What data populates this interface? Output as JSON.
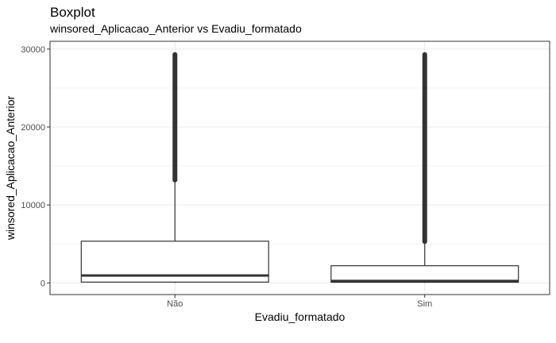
{
  "chart_data": {
    "type": "boxplot",
    "title": "Boxplot",
    "subtitle": "winsored_Aplicacao_Anterior vs Evadiu_formatado",
    "xlabel": "Evadiu_formatado",
    "ylabel": "winsored_Aplicacao_Anterior",
    "ylim": [
      -1500,
      31000
    ],
    "yticks": [
      0,
      10000,
      20000,
      30000
    ],
    "ytick_labels": [
      "0",
      "10000",
      "20000",
      "30000"
    ],
    "grid": true,
    "categories": [
      "Não",
      "Sim"
    ],
    "boxes": [
      {
        "category": "Não",
        "min": 0,
        "q1": 100,
        "median": 950,
        "q3": 5350,
        "whisker_high": 13200,
        "outliers_range": [
          13200,
          29300
        ]
      },
      {
        "category": "Sim",
        "min": 0,
        "q1": 80,
        "median": 250,
        "q3": 2200,
        "whisker_high": 5300,
        "outliers_range": [
          5300,
          29300
        ]
      }
    ],
    "colors": {
      "box_fill": "#ffffff",
      "box_line": "#333333",
      "outliers": "#333333",
      "grid": "#ebebeb",
      "panel_border": "#333333"
    }
  }
}
